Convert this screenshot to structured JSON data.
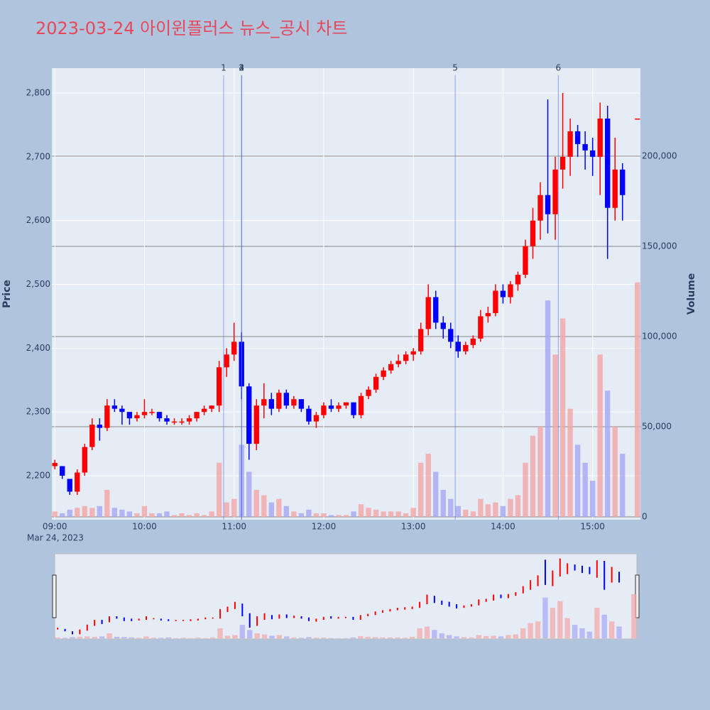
{
  "chart_data": {
    "type": "candlestick",
    "title": "2023-03-24 아이윈플러스 뉴스_공시 차트",
    "y_label": "Price",
    "y2_label": "Volume",
    "date_label": "Mar 24, 2023",
    "increasing_color": "#ff0000",
    "decreasing_color": "#0000ff",
    "volume_up_color": "#f4a6a6",
    "volume_down_color": "#a6a6f4",
    "xlim": [
      "2023-03-24 08:58",
      "2023-03-24 15:32"
    ],
    "xticks": [
      {
        "value": "2023-03-24 09:00",
        "label": "09:00"
      },
      {
        "value": "2023-03-24 10:00",
        "label": "10:00"
      },
      {
        "value": "2023-03-24 11:00",
        "label": "11:00"
      },
      {
        "value": "2023-03-24 12:00",
        "label": "12:00"
      },
      {
        "value": "2023-03-24 13:00",
        "label": "13:00"
      },
      {
        "value": "2023-03-24 14:00",
        "label": "14:00"
      },
      {
        "value": "2023-03-24 15:00",
        "label": "15:00"
      }
    ],
    "ylim": [
      2131,
      2839
    ],
    "yticks": [
      {
        "value": 2200,
        "label": "2,200"
      },
      {
        "value": 2300,
        "label": "2,300"
      },
      {
        "value": 2400,
        "label": "2,400"
      },
      {
        "value": 2500,
        "label": "2,500"
      },
      {
        "value": 2600,
        "label": "2,600"
      },
      {
        "value": 2700,
        "label": "2,700"
      },
      {
        "value": 2800,
        "label": "2,800"
      }
    ],
    "y2lim": [
      -1575,
      248800
    ],
    "y2ticks": [
      0,
      {
        "value": 50000,
        "label": "50,000"
      },
      {
        "value": 100000,
        "label": "100,000"
      },
      {
        "value": 150000,
        "label": "150,000"
      },
      {
        "value": 200000,
        "label": "200,000"
      }
    ],
    "news": [
      {
        "label": "1",
        "x": "2023-03-24 10:53"
      },
      {
        "label": "2",
        "x": "2023-03-24 11:05"
      },
      {
        "label": "3",
        "x": "2023-03-24 11:05"
      },
      {
        "label": "4",
        "x": "2023-03-24 11:05"
      },
      {
        "label": "5",
        "x": "2023-03-24 13:28"
      },
      {
        "label": "6",
        "x": "2023-03-24 14:37"
      }
    ],
    "x": [
      "2023-03-24 09:00",
      "2023-03-24 09:05",
      "2023-03-24 09:10",
      "2023-03-24 09:15",
      "2023-03-24 09:20",
      "2023-03-24 09:25",
      "2023-03-24 09:30",
      "2023-03-24 09:35",
      "2023-03-24 09:40",
      "2023-03-24 09:45",
      "2023-03-24 09:50",
      "2023-03-24 09:55",
      "2023-03-24 10:00",
      "2023-03-24 10:05",
      "2023-03-24 10:10",
      "2023-03-24 10:15",
      "2023-03-24 10:20",
      "2023-03-24 10:25",
      "2023-03-24 10:30",
      "2023-03-24 10:35",
      "2023-03-24 10:40",
      "2023-03-24 10:45",
      "2023-03-24 10:50",
      "2023-03-24 10:55",
      "2023-03-24 11:00",
      "2023-03-24 11:05",
      "2023-03-24 11:10",
      "2023-03-24 11:15",
      "2023-03-24 11:20",
      "2023-03-24 11:25",
      "2023-03-24 11:30",
      "2023-03-24 11:35",
      "2023-03-24 11:40",
      "2023-03-24 11:45",
      "2023-03-24 11:50",
      "2023-03-24 11:55",
      "2023-03-24 12:00",
      "2023-03-24 12:05",
      "2023-03-24 12:10",
      "2023-03-24 12:15",
      "2023-03-24 12:20",
      "2023-03-24 12:25",
      "2023-03-24 12:30",
      "2023-03-24 12:35",
      "2023-03-24 12:40",
      "2023-03-24 12:45",
      "2023-03-24 12:50",
      "2023-03-24 12:55",
      "2023-03-24 13:00",
      "2023-03-24 13:05",
      "2023-03-24 13:10",
      "2023-03-24 13:15",
      "2023-03-24 13:20",
      "2023-03-24 13:25",
      "2023-03-24 13:30",
      "2023-03-24 13:35",
      "2023-03-24 13:40",
      "2023-03-24 13:45",
      "2023-03-24 13:50",
      "2023-03-24 13:55",
      "2023-03-24 14:00",
      "2023-03-24 14:05",
      "2023-03-24 14:10",
      "2023-03-24 14:15",
      "2023-03-24 14:20",
      "2023-03-24 14:25",
      "2023-03-24 14:30",
      "2023-03-24 14:35",
      "2023-03-24 14:40",
      "2023-03-24 14:45",
      "2023-03-24 14:50",
      "2023-03-24 14:55",
      "2023-03-24 15:00",
      "2023-03-24 15:05",
      "2023-03-24 15:10",
      "2023-03-24 15:15",
      "2023-03-24 15:20",
      "2023-03-24 15:30"
    ],
    "open": [
      2215,
      2215,
      2195,
      2175,
      2205,
      2245,
      2280,
      2275,
      2310,
      2305,
      2300,
      2290,
      2295,
      2300,
      2300,
      2290,
      2285,
      2285,
      2285,
      2290,
      2300,
      2305,
      2310,
      2370,
      2390,
      2410,
      2340,
      2250,
      2310,
      2320,
      2305,
      2330,
      2310,
      2320,
      2305,
      2285,
      2295,
      2310,
      2305,
      2310,
      2315,
      2295,
      2325,
      2335,
      2355,
      2365,
      2375,
      2380,
      2390,
      2395,
      2430,
      2480,
      2440,
      2430,
      2410,
      2395,
      2405,
      2415,
      2450,
      2455,
      2490,
      2480,
      2500,
      2515,
      2560,
      2600,
      2640,
      2610,
      2680,
      2700,
      2740,
      2720,
      2710,
      2700,
      2760,
      2620,
      2680,
      2760
    ],
    "high": [
      2225,
      2215,
      2195,
      2210,
      2250,
      2290,
      2290,
      2320,
      2320,
      2310,
      2300,
      2300,
      2320,
      2305,
      2300,
      2295,
      2290,
      2290,
      2295,
      2300,
      2310,
      2310,
      2380,
      2400,
      2440,
      2425,
      2345,
      2320,
      2345,
      2330,
      2335,
      2335,
      2325,
      2320,
      2310,
      2300,
      2315,
      2320,
      2315,
      2315,
      2315,
      2330,
      2340,
      2360,
      2370,
      2380,
      2390,
      2395,
      2400,
      2440,
      2500,
      2490,
      2450,
      2440,
      2420,
      2410,
      2420,
      2460,
      2465,
      2500,
      2500,
      2505,
      2520,
      2570,
      2620,
      2660,
      2790,
      2700,
      2800,
      2760,
      2750,
      2740,
      2730,
      2785,
      2780,
      2730,
      2690,
      2760
    ],
    "low": [
      2210,
      2195,
      2170,
      2170,
      2200,
      2240,
      2255,
      2270,
      2300,
      2280,
      2280,
      2285,
      2290,
      2295,
      2285,
      2280,
      2280,
      2280,
      2280,
      2285,
      2295,
      2300,
      2300,
      2355,
      2380,
      2320,
      2225,
      2240,
      2290,
      2295,
      2300,
      2305,
      2305,
      2300,
      2280,
      2275,
      2290,
      2300,
      2300,
      2305,
      2290,
      2290,
      2320,
      2330,
      2350,
      2360,
      2370,
      2375,
      2380,
      2390,
      2420,
      2430,
      2415,
      2400,
      2385,
      2390,
      2400,
      2410,
      2440,
      2450,
      2470,
      2470,
      2490,
      2510,
      2540,
      2570,
      2580,
      2570,
      2650,
      2670,
      2700,
      2680,
      2670,
      2640,
      2540,
      2600,
      2600,
      2760
    ],
    "close": [
      2220,
      2200,
      2175,
      2205,
      2245,
      2280,
      2275,
      2310,
      2305,
      2300,
      2290,
      2295,
      2300,
      2300,
      2290,
      2285,
      2285,
      2285,
      2290,
      2300,
      2305,
      2310,
      2370,
      2390,
      2410,
      2340,
      2250,
      2310,
      2320,
      2305,
      2330,
      2310,
      2320,
      2305,
      2285,
      2295,
      2310,
      2305,
      2310,
      2315,
      2295,
      2325,
      2335,
      2355,
      2365,
      2375,
      2380,
      2390,
      2395,
      2430,
      2480,
      2440,
      2430,
      2410,
      2395,
      2405,
      2415,
      2450,
      2455,
      2490,
      2480,
      2500,
      2515,
      2560,
      2600,
      2640,
      2610,
      2680,
      2700,
      2740,
      2720,
      2710,
      2700,
      2760,
      2620,
      2680,
      2640,
      2760
    ],
    "volume": [
      3000,
      2000,
      4000,
      5000,
      6000,
      5000,
      6000,
      15000,
      5000,
      4000,
      3000,
      2000,
      6000,
      2000,
      2000,
      3000,
      1000,
      2000,
      1000,
      2000,
      1000,
      3000,
      30000,
      8000,
      10000,
      40000,
      25000,
      15000,
      12000,
      8000,
      10000,
      6000,
      3000,
      2000,
      4000,
      2000,
      2000,
      1000,
      1000,
      1000,
      3000,
      7000,
      5000,
      4000,
      3000,
      3000,
      3000,
      2000,
      5000,
      30000,
      35000,
      25000,
      15000,
      10000,
      6000,
      4000,
      3000,
      10000,
      7000,
      8000,
      6000,
      10000,
      12000,
      30000,
      45000,
      50000,
      120000,
      90000,
      110000,
      60000,
      40000,
      30000,
      20000,
      90000,
      70000,
      50000,
      35000,
      130000
    ]
  }
}
